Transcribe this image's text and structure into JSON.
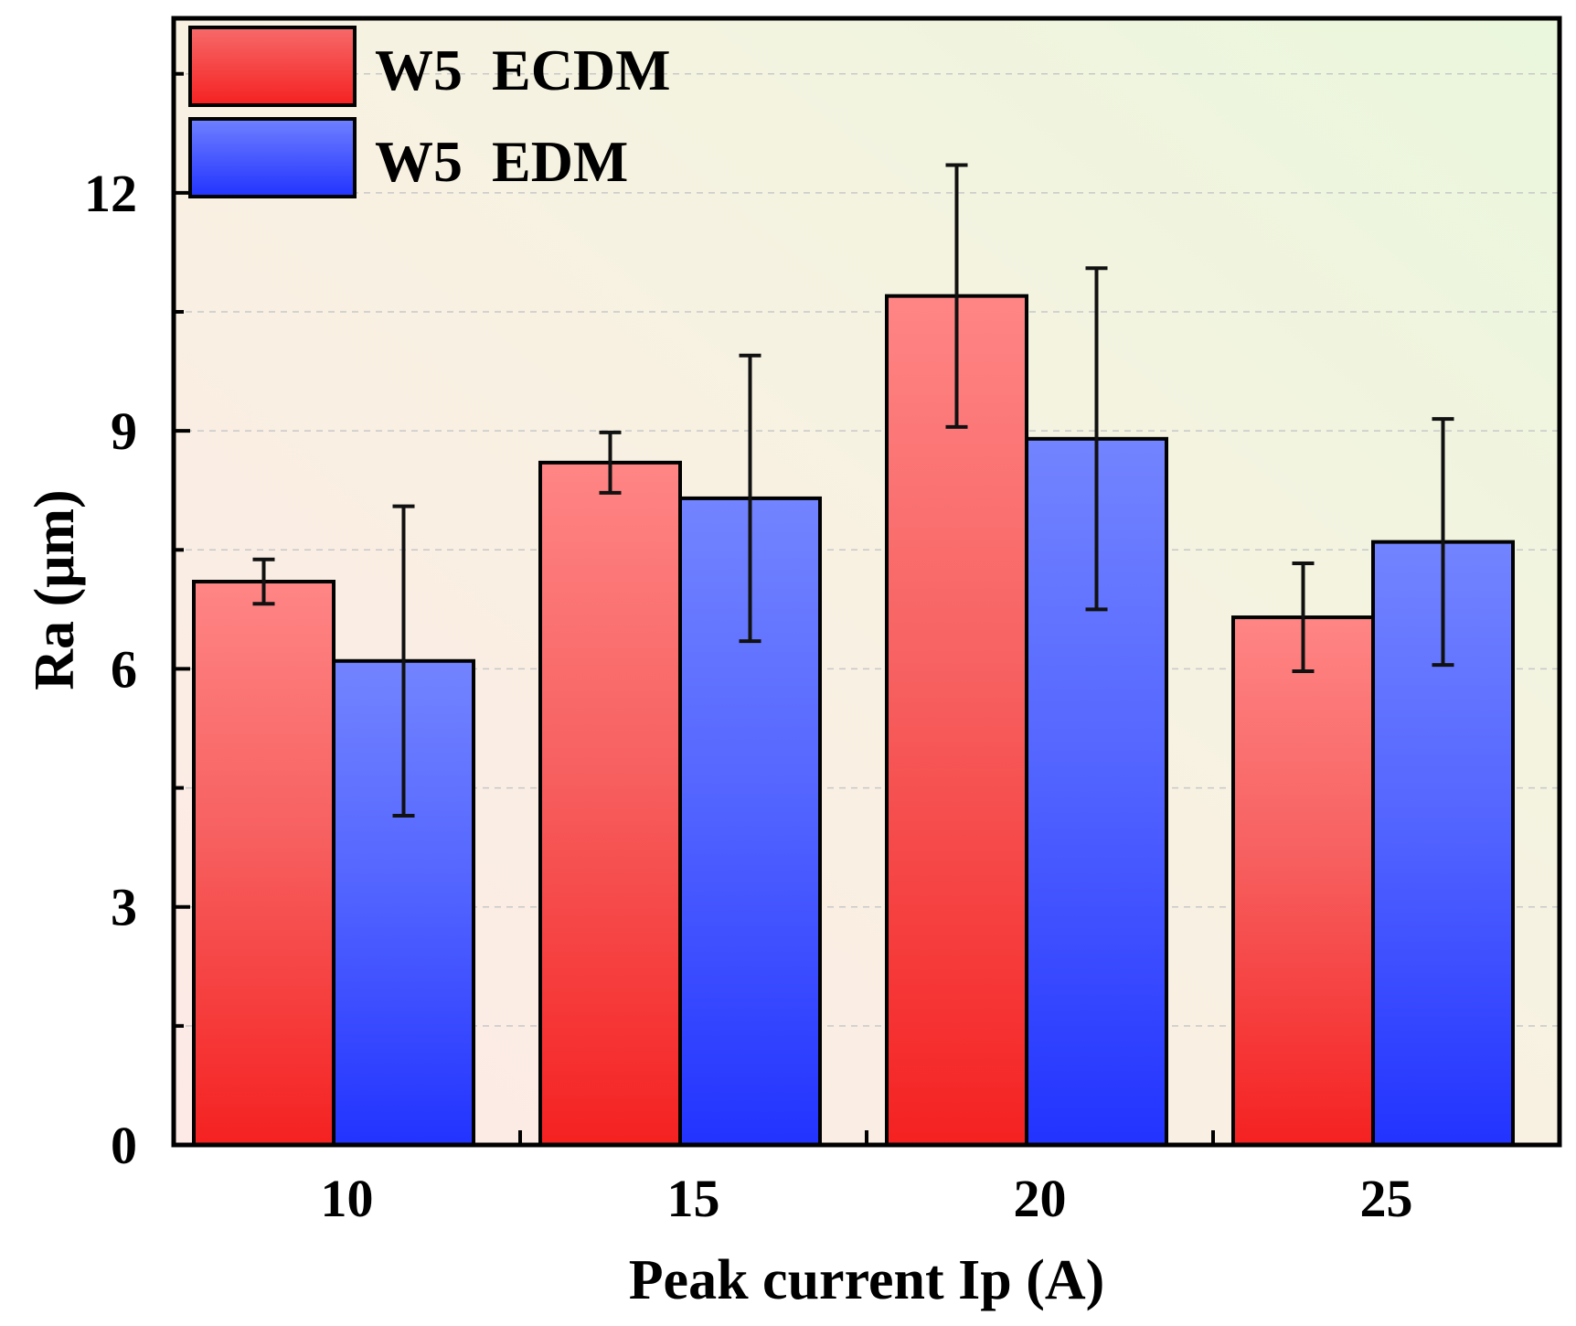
{
  "chart_data": {
    "type": "bar",
    "title": "",
    "xlabel": "Peak current Ip (A)",
    "ylabel": "Ra (μm)",
    "categories": [
      "10",
      "15",
      "20",
      "25"
    ],
    "ylim": [
      0,
      14.2
    ],
    "yticks": [
      0,
      3,
      6,
      9,
      12
    ],
    "ytick_labels": [
      "0",
      "3",
      "6",
      "9",
      "12"
    ],
    "grid": "horizontal dashed",
    "legend_position": "top-left",
    "series": [
      {
        "name": "W5  ECDM",
        "color": "#f03a3a",
        "values": [
          7.1,
          8.6,
          10.7,
          6.65
        ],
        "errors": [
          0.28,
          0.38,
          1.65,
          0.68
        ]
      },
      {
        "name": "W5  EDM",
        "color": "#3a46f5",
        "values": [
          6.1,
          8.15,
          8.9,
          7.6
        ],
        "errors": [
          1.95,
          1.8,
          2.15,
          1.55
        ]
      }
    ]
  }
}
